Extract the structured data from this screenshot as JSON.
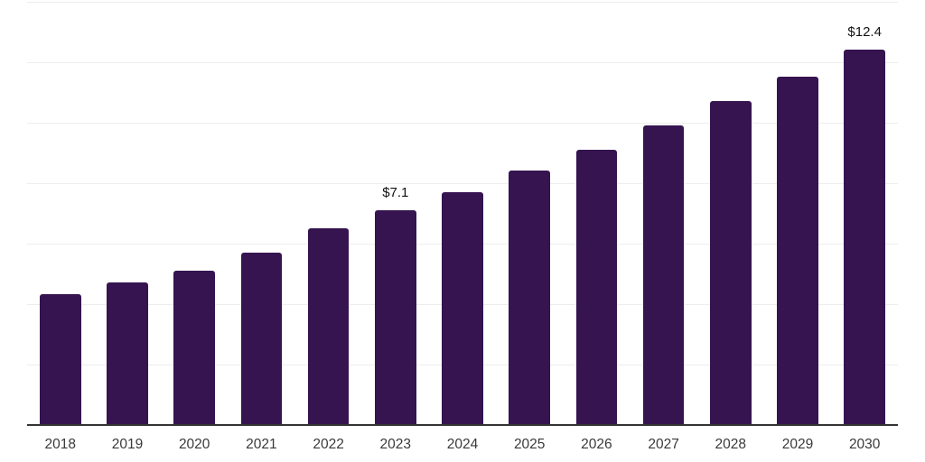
{
  "chart_data": {
    "type": "bar",
    "title": "",
    "xlabel": "",
    "ylabel": "",
    "categories": [
      "2018",
      "2019",
      "2020",
      "2021",
      "2022",
      "2023",
      "2024",
      "2025",
      "2026",
      "2027",
      "2028",
      "2029",
      "2030"
    ],
    "values": [
      4.3,
      4.7,
      5.1,
      5.7,
      6.5,
      7.1,
      7.7,
      8.4,
      9.1,
      9.9,
      10.7,
      11.5,
      12.4
    ],
    "data_labels": [
      "",
      "",
      "",
      "",
      "",
      "$7.1",
      "",
      "",
      "",
      "",
      "",
      "",
      "$12.4"
    ],
    "ylim": [
      0,
      14
    ],
    "gridline_step": 2,
    "grid": "horizontal",
    "legend": "none",
    "colors": {
      "bar": "#351450",
      "gridline": "#ededed",
      "axis_line": "#333333",
      "tick_label": "#3a3a3a",
      "value_label": "#111111",
      "background": "#ffffff"
    }
  }
}
